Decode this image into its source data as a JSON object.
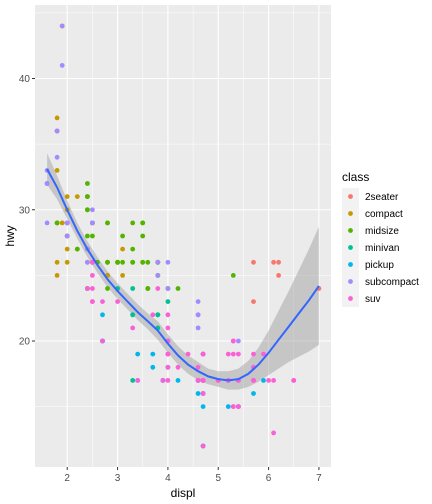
{
  "chart_data": {
    "type": "scatter",
    "xlabel": "displ",
    "ylabel": "hwy",
    "xlim": [
      1.36,
      7.24
    ],
    "ylim": [
      10.4,
      45.6
    ],
    "xticks": [
      2,
      3,
      4,
      5,
      6,
      7
    ],
    "yticks": [
      20,
      30,
      40
    ],
    "grid": true,
    "legend": {
      "title": "class",
      "placement": "right",
      "items": [
        {
          "label": "2seater",
          "color": "#F8766D"
        },
        {
          "label": "compact",
          "color": "#C49A00"
        },
        {
          "label": "midsize",
          "color": "#53B400"
        },
        {
          "label": "minivan",
          "color": "#00C094"
        },
        {
          "label": "pickup",
          "color": "#00B6EB"
        },
        {
          "label": "subcompact",
          "color": "#A58AFF"
        },
        {
          "label": "suv",
          "color": "#FB61D7"
        }
      ]
    },
    "series": [
      {
        "class": "2seater",
        "points": [
          [
            5.7,
            26
          ],
          [
            5.7,
            23
          ],
          [
            6.1,
            26
          ],
          [
            6.2,
            26
          ],
          [
            6.2,
            25
          ],
          [
            7.0,
            24
          ]
        ]
      },
      {
        "class": "compact",
        "points": [
          [
            1.8,
            29
          ],
          [
            1.8,
            29
          ],
          [
            2.0,
            31
          ],
          [
            2.0,
            30
          ],
          [
            2.8,
            26
          ],
          [
            2.8,
            26
          ],
          [
            3.1,
            27
          ],
          [
            1.8,
            26
          ],
          [
            1.8,
            25
          ],
          [
            2.0,
            28
          ],
          [
            2.0,
            27
          ],
          [
            2.8,
            25
          ],
          [
            2.8,
            25
          ],
          [
            3.1,
            25
          ],
          [
            2.0,
            29
          ],
          [
            2.2,
            27
          ],
          [
            2.2,
            31
          ],
          [
            2.4,
            31
          ],
          [
            2.4,
            26
          ],
          [
            3.0,
            26
          ],
          [
            1.8,
            36
          ],
          [
            1.8,
            37
          ],
          [
            1.9,
            44
          ],
          [
            2.0,
            29
          ],
          [
            2.0,
            26
          ],
          [
            2.5,
            29
          ],
          [
            2.8,
            29
          ],
          [
            1.9,
            29
          ],
          [
            2.0,
            28
          ],
          [
            2.5,
            29
          ],
          [
            2.8,
            26
          ],
          [
            2.4,
            24
          ],
          [
            3.5,
            26
          ],
          [
            2.0,
            30
          ],
          [
            1.8,
            33
          ]
        ]
      },
      {
        "class": "midsize",
        "points": [
          [
            2.4,
            27
          ],
          [
            2.4,
            30
          ],
          [
            3.1,
            26
          ],
          [
            3.5,
            29
          ],
          [
            3.6,
            26
          ],
          [
            2.5,
            26
          ],
          [
            2.5,
            29
          ],
          [
            2.5,
            28
          ],
          [
            3.3,
            27
          ],
          [
            3.8,
            26
          ],
          [
            3.8,
            26
          ],
          [
            3.8,
            26
          ],
          [
            5.3,
            25
          ],
          [
            2.2,
            27
          ],
          [
            2.4,
            30
          ],
          [
            2.4,
            31
          ],
          [
            3.0,
            26
          ],
          [
            3.3,
            26
          ],
          [
            3.3,
            29
          ],
          [
            3.5,
            28
          ],
          [
            3.5,
            26
          ],
          [
            2.4,
            31
          ],
          [
            2.4,
            32
          ],
          [
            3.0,
            26
          ],
          [
            3.0,
            26
          ],
          [
            3.5,
            29
          ],
          [
            3.3,
            26
          ],
          [
            1.8,
            29
          ],
          [
            2.0,
            28
          ],
          [
            2.8,
            29
          ],
          [
            2.8,
            26
          ],
          [
            3.6,
            24
          ],
          [
            3.6,
            24
          ],
          [
            3.8,
            25
          ],
          [
            3.8,
            25
          ],
          [
            4.0,
            24
          ],
          [
            2.8,
            24
          ],
          [
            3.1,
            28
          ],
          [
            4.2,
            24
          ],
          [
            2.4,
            28
          ],
          [
            2.6,
            26
          ]
        ]
      },
      {
        "class": "minivan",
        "points": [
          [
            2.4,
            24
          ],
          [
            3.0,
            24
          ],
          [
            3.3,
            22
          ],
          [
            3.3,
            22
          ],
          [
            3.3,
            24
          ],
          [
            3.8,
            22
          ],
          [
            3.8,
            21
          ],
          [
            3.8,
            22
          ],
          [
            4.0,
            23
          ],
          [
            3.3,
            17
          ],
          [
            3.8,
            22
          ]
        ]
      },
      {
        "class": "pickup",
        "points": [
          [
            3.7,
            19
          ],
          [
            3.7,
            18
          ],
          [
            3.9,
            17
          ],
          [
            3.9,
            17
          ],
          [
            4.7,
            19
          ],
          [
            4.7,
            19
          ],
          [
            4.7,
            12
          ],
          [
            5.2,
            17
          ],
          [
            5.2,
            15
          ],
          [
            4.7,
            17
          ],
          [
            4.7,
            16
          ],
          [
            4.7,
            12
          ],
          [
            4.7,
            17
          ],
          [
            5.2,
            17
          ],
          [
            5.7,
            16
          ],
          [
            5.9,
            17
          ],
          [
            4.2,
            17
          ],
          [
            4.6,
            17
          ],
          [
            4.6,
            16
          ],
          [
            4.6,
            17
          ],
          [
            5.4,
            17
          ],
          [
            5.4,
            15
          ],
          [
            2.7,
            20
          ],
          [
            2.7,
            20
          ],
          [
            2.7,
            22
          ],
          [
            3.4,
            17
          ],
          [
            3.4,
            19
          ],
          [
            4.0,
            18
          ],
          [
            4.0,
            20
          ],
          [
            4.7,
            17
          ],
          [
            4.7,
            15
          ],
          [
            5.7,
            18
          ],
          [
            5.4,
            15
          ]
        ]
      },
      {
        "class": "subcompact",
        "points": [
          [
            3.8,
            26
          ],
          [
            3.8,
            25
          ],
          [
            4.0,
            26
          ],
          [
            4.0,
            24
          ],
          [
            4.6,
            21
          ],
          [
            4.6,
            22
          ],
          [
            4.6,
            23
          ],
          [
            4.6,
            22
          ],
          [
            5.4,
            20
          ],
          [
            1.6,
            33
          ],
          [
            1.6,
            32
          ],
          [
            1.6,
            32
          ],
          [
            1.6,
            29
          ],
          [
            1.6,
            32
          ],
          [
            1.8,
            34
          ],
          [
            1.8,
            36
          ],
          [
            1.8,
            36
          ],
          [
            2.0,
            29
          ],
          [
            2.4,
            26
          ],
          [
            2.4,
            27
          ],
          [
            2.5,
            30
          ],
          [
            2.5,
            26
          ],
          [
            2.5,
            29
          ],
          [
            2.5,
            26
          ],
          [
            1.9,
            41
          ],
          [
            1.9,
            44
          ],
          [
            2.0,
            28
          ],
          [
            2.0,
            29
          ],
          [
            2.0,
            29
          ],
          [
            2.0,
            28
          ],
          [
            2.5,
            29
          ]
        ]
      },
      {
        "class": "suv",
        "points": [
          [
            5.3,
            20
          ],
          [
            5.3,
            15
          ],
          [
            5.3,
            20
          ],
          [
            5.7,
            17
          ],
          [
            6.0,
            17
          ],
          [
            5.7,
            17
          ],
          [
            6.5,
            17
          ],
          [
            4.7,
            19
          ],
          [
            4.7,
            19
          ],
          [
            4.7,
            17
          ],
          [
            4.7,
            17
          ],
          [
            5.2,
            17
          ],
          [
            5.2,
            17
          ],
          [
            3.9,
            17
          ],
          [
            4.7,
            16
          ],
          [
            4.7,
            12
          ],
          [
            4.7,
            19
          ],
          [
            5.2,
            19
          ],
          [
            5.7,
            17
          ],
          [
            5.9,
            19
          ],
          [
            4.6,
            17
          ],
          [
            5.4,
            19
          ],
          [
            5.4,
            17
          ],
          [
            4.0,
            19
          ],
          [
            4.0,
            19
          ],
          [
            4.6,
            17
          ],
          [
            5.0,
            17
          ],
          [
            2.5,
            23
          ],
          [
            2.5,
            23
          ],
          [
            2.5,
            26
          ],
          [
            2.5,
            25
          ],
          [
            2.5,
            24
          ],
          [
            2.7,
            23
          ],
          [
            2.7,
            20
          ],
          [
            3.4,
            17
          ],
          [
            4.0,
            17
          ],
          [
            4.7,
            17
          ],
          [
            2.4,
            24
          ],
          [
            4.0,
            18
          ],
          [
            4.2,
            18
          ],
          [
            5.4,
            15
          ],
          [
            5.4,
            15
          ],
          [
            6.1,
            13
          ],
          [
            5.3,
            15
          ],
          [
            5.3,
            19
          ],
          [
            5.7,
            17
          ],
          [
            6.1,
            17
          ],
          [
            4.0,
            20
          ],
          [
            4.0,
            19
          ],
          [
            4.6,
            18
          ],
          [
            5.0,
            17
          ],
          [
            5.7,
            18
          ],
          [
            4.0,
            21
          ],
          [
            4.7,
            17
          ],
          [
            5.7,
            19
          ],
          [
            6.5,
            17
          ],
          [
            3.0,
            23
          ],
          [
            3.7,
            22
          ],
          [
            3.3,
            21
          ],
          [
            4.4,
            19
          ],
          [
            3.8,
            24
          ],
          [
            4.0,
            22
          ]
        ]
      }
    ],
    "smooth": {
      "method": "loess",
      "color": "#3366FF",
      "band_color": "#999999",
      "curve": [
        [
          1.6,
          33.1
        ],
        [
          1.8,
          31.7
        ],
        [
          2.0,
          30.0
        ],
        [
          2.2,
          28.4
        ],
        [
          2.4,
          27.0
        ],
        [
          2.6,
          25.8
        ],
        [
          2.8,
          24.7
        ],
        [
          3.0,
          23.8
        ],
        [
          3.2,
          23.0
        ],
        [
          3.4,
          22.2
        ],
        [
          3.6,
          21.5
        ],
        [
          3.8,
          20.8
        ],
        [
          4.0,
          19.8
        ],
        [
          4.2,
          18.9
        ],
        [
          4.4,
          18.2
        ],
        [
          4.6,
          17.7
        ],
        [
          4.8,
          17.3
        ],
        [
          5.0,
          17.1
        ],
        [
          5.2,
          17.0
        ],
        [
          5.4,
          17.1
        ],
        [
          5.6,
          17.5
        ],
        [
          5.8,
          18.2
        ],
        [
          6.0,
          19.1
        ],
        [
          6.2,
          20.1
        ],
        [
          6.4,
          21.1
        ],
        [
          6.6,
          22.1
        ],
        [
          6.8,
          23.1
        ],
        [
          7.0,
          24.2
        ]
      ],
      "lower": [
        [
          1.6,
          31.9
        ],
        [
          1.8,
          30.8
        ],
        [
          2.0,
          29.3
        ],
        [
          2.2,
          27.8
        ],
        [
          2.4,
          26.4
        ],
        [
          2.6,
          25.2
        ],
        [
          2.8,
          24.1
        ],
        [
          3.0,
          23.2
        ],
        [
          3.2,
          22.4
        ],
        [
          3.4,
          21.6
        ],
        [
          3.6,
          20.9
        ],
        [
          3.8,
          20.1
        ],
        [
          4.0,
          19.1
        ],
        [
          4.2,
          18.2
        ],
        [
          4.4,
          17.5
        ],
        [
          4.6,
          17.0
        ],
        [
          4.8,
          16.7
        ],
        [
          5.0,
          16.5
        ],
        [
          5.2,
          16.3
        ],
        [
          5.4,
          16.3
        ],
        [
          5.6,
          16.5
        ],
        [
          5.8,
          16.9
        ],
        [
          6.0,
          17.4
        ],
        [
          6.2,
          17.9
        ],
        [
          6.4,
          18.4
        ],
        [
          6.6,
          18.8
        ],
        [
          6.8,
          19.2
        ],
        [
          7.0,
          19.7
        ]
      ],
      "upper": [
        [
          1.6,
          34.3
        ],
        [
          1.8,
          32.6
        ],
        [
          2.0,
          30.7
        ],
        [
          2.2,
          29.0
        ],
        [
          2.4,
          27.6
        ],
        [
          2.6,
          26.4
        ],
        [
          2.8,
          25.3
        ],
        [
          3.0,
          24.4
        ],
        [
          3.2,
          23.6
        ],
        [
          3.4,
          22.8
        ],
        [
          3.6,
          22.1
        ],
        [
          3.8,
          21.5
        ],
        [
          4.0,
          20.5
        ],
        [
          4.2,
          19.6
        ],
        [
          4.4,
          18.9
        ],
        [
          4.6,
          18.4
        ],
        [
          4.8,
          17.9
        ],
        [
          5.0,
          17.7
        ],
        [
          5.2,
          17.7
        ],
        [
          5.4,
          17.9
        ],
        [
          5.6,
          18.5
        ],
        [
          5.8,
          19.5
        ],
        [
          6.0,
          20.8
        ],
        [
          6.2,
          22.3
        ],
        [
          6.4,
          23.8
        ],
        [
          6.6,
          25.4
        ],
        [
          6.8,
          27.0
        ],
        [
          7.0,
          28.7
        ]
      ]
    }
  }
}
